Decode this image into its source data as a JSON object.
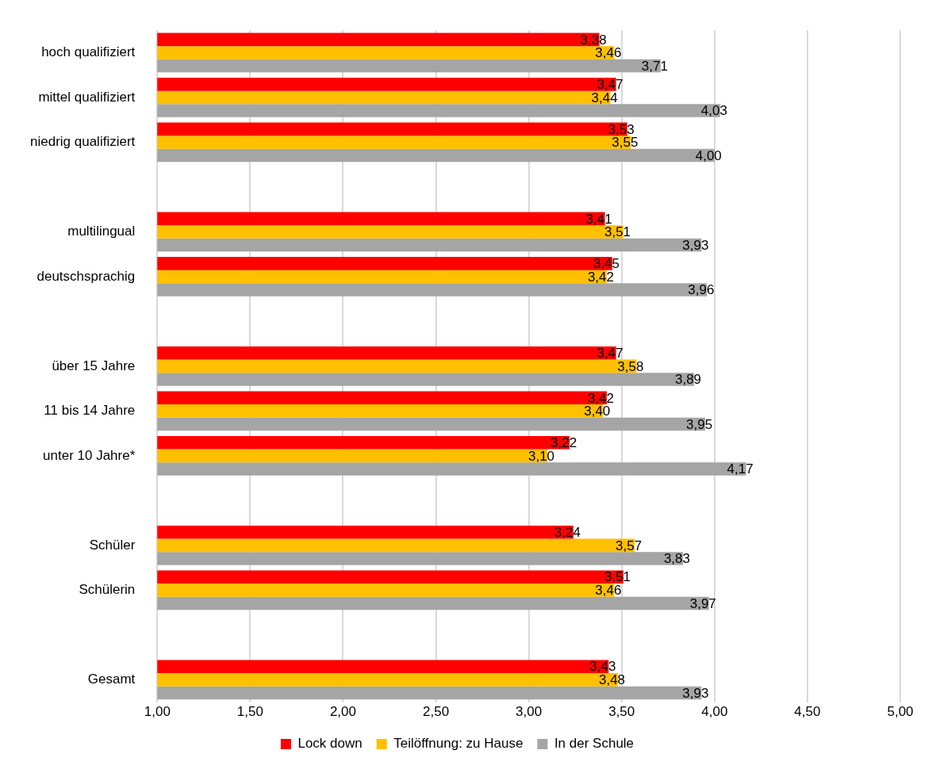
{
  "chart_data": {
    "type": "bar",
    "orientation": "horizontal",
    "categories": [
      "hoch qualifiziert",
      "mittel qualifiziert",
      "niedrig qualifiziert",
      null,
      "multilingual",
      "deutschsprachig",
      null,
      "über 15 Jahre",
      "11 bis 14 Jahre",
      "unter 10 Jahre*",
      null,
      "Schüler",
      "Schülerin",
      null,
      "Gesamt"
    ],
    "series": [
      {
        "name": "Lock down",
        "color": "#ff0000",
        "values": [
          3.38,
          3.47,
          3.53,
          null,
          3.41,
          3.45,
          null,
          3.47,
          3.42,
          3.22,
          null,
          3.24,
          3.51,
          null,
          3.43
        ],
        "value_labels": [
          "3,38",
          "3,47",
          "3,53",
          null,
          "3,41",
          "3,45",
          null,
          "3,47",
          "3,42",
          "3,22",
          null,
          "3,24",
          "3,51",
          null,
          "3,43"
        ]
      },
      {
        "name": "Teilöffnung: zu Hause",
        "color": "#ffc000",
        "values": [
          3.46,
          3.44,
          3.55,
          null,
          3.51,
          3.42,
          null,
          3.58,
          3.4,
          3.1,
          null,
          3.57,
          3.46,
          null,
          3.48
        ],
        "value_labels": [
          "3,46",
          "3,44",
          "3,55",
          null,
          "3,51",
          "3,42",
          null,
          "3,58",
          "3,40",
          "3,10",
          null,
          "3,57",
          "3,46",
          null,
          "3,48"
        ]
      },
      {
        "name": "In der Schule",
        "color": "#a5a5a5",
        "values": [
          3.71,
          4.03,
          4.0,
          null,
          3.93,
          3.96,
          null,
          3.89,
          3.95,
          4.17,
          null,
          3.83,
          3.97,
          null,
          3.93
        ],
        "value_labels": [
          "3,71",
          "4,03",
          "4,00",
          null,
          "3,93",
          "3,96",
          null,
          "3,89",
          "3,95",
          "4,17",
          null,
          "3,83",
          "3,97",
          null,
          "3,93"
        ]
      }
    ],
    "xlim": [
      1,
      5
    ],
    "xticks": [
      {
        "value": 1,
        "label": "1,00"
      },
      {
        "value": 1.5,
        "label": "1,50"
      },
      {
        "value": 2,
        "label": "2,00"
      },
      {
        "value": 2.5,
        "label": "2,50"
      },
      {
        "value": 3,
        "label": "3,00"
      },
      {
        "value": 3.5,
        "label": "3,50"
      },
      {
        "value": 4,
        "label": "4,00"
      },
      {
        "value": 4.5,
        "label": "4,50"
      },
      {
        "value": 5,
        "label": "5,00"
      }
    ],
    "grid": "x",
    "legend": "bottom"
  }
}
